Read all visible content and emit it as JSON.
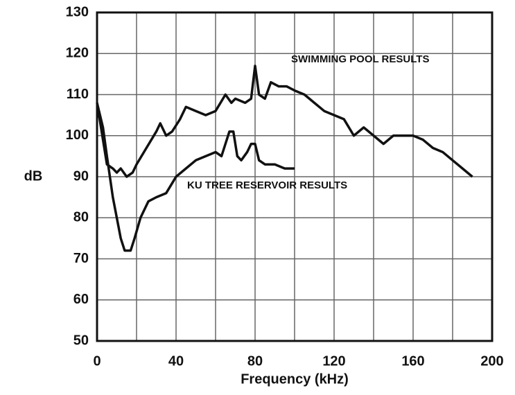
{
  "chart_data": {
    "type": "line",
    "xlabel": "Frequency (kHz)",
    "ylabel": "dB",
    "xlim": [
      0,
      200
    ],
    "ylim": [
      50,
      130
    ],
    "xticks": [
      0,
      40,
      80,
      120,
      160,
      200
    ],
    "xminor": [
      20,
      60,
      100,
      140,
      180
    ],
    "yticks": [
      50,
      60,
      70,
      80,
      90,
      100,
      110,
      120,
      130
    ],
    "grid": true,
    "series": [
      {
        "name": "SWIMMING POOL RESULTS",
        "color": "#111111",
        "x": [
          0,
          5,
          8,
          10,
          12,
          15,
          18,
          20,
          25,
          30,
          32,
          35,
          38,
          42,
          45,
          50,
          55,
          60,
          65,
          68,
          70,
          75,
          78,
          80,
          82,
          85,
          88,
          92,
          96,
          100,
          105,
          110,
          115,
          120,
          125,
          130,
          135,
          140,
          145,
          150,
          155,
          160,
          165,
          170,
          175,
          180,
          185,
          190
        ],
        "values": [
          108,
          93,
          92,
          91,
          92,
          90,
          91,
          93,
          97,
          101,
          103,
          100,
          101,
          104,
          107,
          106,
          105,
          106,
          110,
          108,
          109,
          108,
          109,
          117,
          110,
          109,
          113,
          112,
          112,
          111,
          110,
          108,
          106,
          105,
          104,
          100,
          102,
          100,
          98,
          100,
          100,
          100,
          99,
          97,
          96,
          94,
          92,
          90
        ]
      },
      {
        "name": "KU TREE RESERVOIR RESULTS",
        "color": "#111111",
        "x": [
          0,
          3,
          5,
          8,
          10,
          12,
          14,
          17,
          19,
          22,
          26,
          30,
          35,
          40,
          45,
          50,
          55,
          60,
          63,
          65,
          67,
          69,
          71,
          73,
          76,
          78,
          80,
          82,
          85,
          90,
          95,
          100
        ],
        "values": [
          108,
          102,
          95,
          85,
          80,
          75,
          72,
          72,
          75,
          80,
          84,
          85,
          86,
          90,
          92,
          94,
          95,
          96,
          95,
          98,
          101,
          101,
          95,
          94,
          96,
          98,
          98,
          94,
          93,
          93,
          92,
          92
        ]
      }
    ]
  }
}
